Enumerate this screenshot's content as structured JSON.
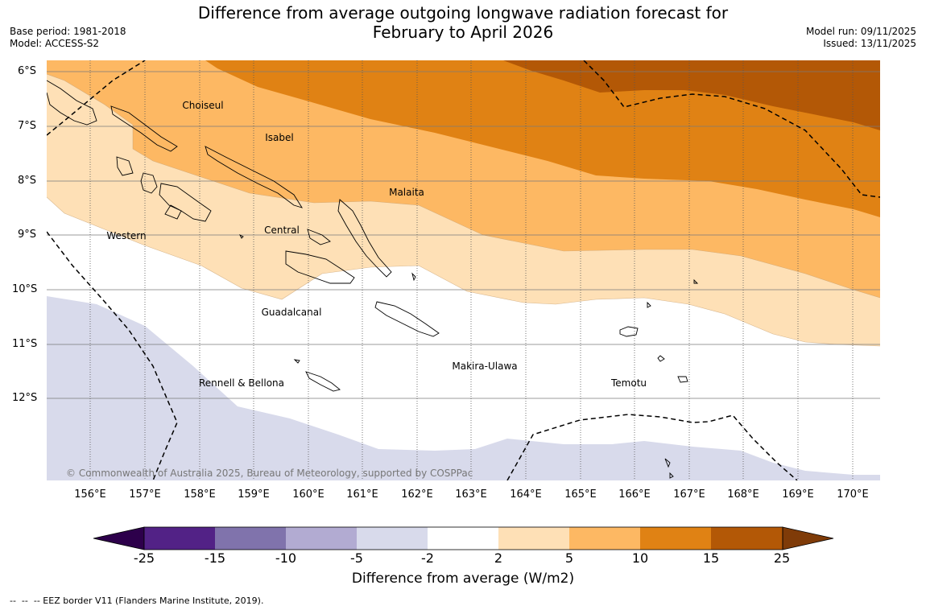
{
  "header": {
    "title_line1": "Difference from average outgoing longwave radiation forecast for",
    "title_line2": "February to April 2026",
    "base_period": "Base period: 1981-2018",
    "model": "Model: ACCESS-S2",
    "model_run": "Model run: 09/11/2025",
    "issued": "Issued: 13/11/2025"
  },
  "map": {
    "lat_ticks": [
      "6°S",
      "7°S",
      "8°S",
      "9°S",
      "10°S",
      "11°S",
      "12°S"
    ],
    "lon_ticks": [
      "156°E",
      "157°E",
      "158°E",
      "159°E",
      "160°E",
      "161°E",
      "162°E",
      "163°E",
      "164°E",
      "165°E",
      "166°E",
      "167°E",
      "168°E",
      "169°E",
      "170°E"
    ],
    "provinces": [
      "Choiseul",
      "Isabel",
      "Malaita",
      "Western",
      "Central",
      "Guadalcanal",
      "Makira-Ulawa",
      "Rennell & Bellona",
      "Temotu"
    ],
    "copyright": "© Commonwealth of Australia 2025, Bureau of Meteorology, supported by COSPPac"
  },
  "colorbar": {
    "title": "Difference from average (W/m2)",
    "ticks": [
      "-25",
      "-15",
      "-10",
      "-5",
      "-2",
      "2",
      "5",
      "10",
      "15",
      "25"
    ],
    "colors": [
      "#522286",
      "#8073ac",
      "#b2abd2",
      "#d8daeb",
      "#ffffff",
      "#fee0b6",
      "#fdb863",
      "#e08214",
      "#b35806"
    ],
    "low_extend": "#2d004b",
    "high_extend": "#7f3b08"
  },
  "footnote": "--  --  -- EEZ border V11 (Flanders Marine Institute, 2019)."
}
